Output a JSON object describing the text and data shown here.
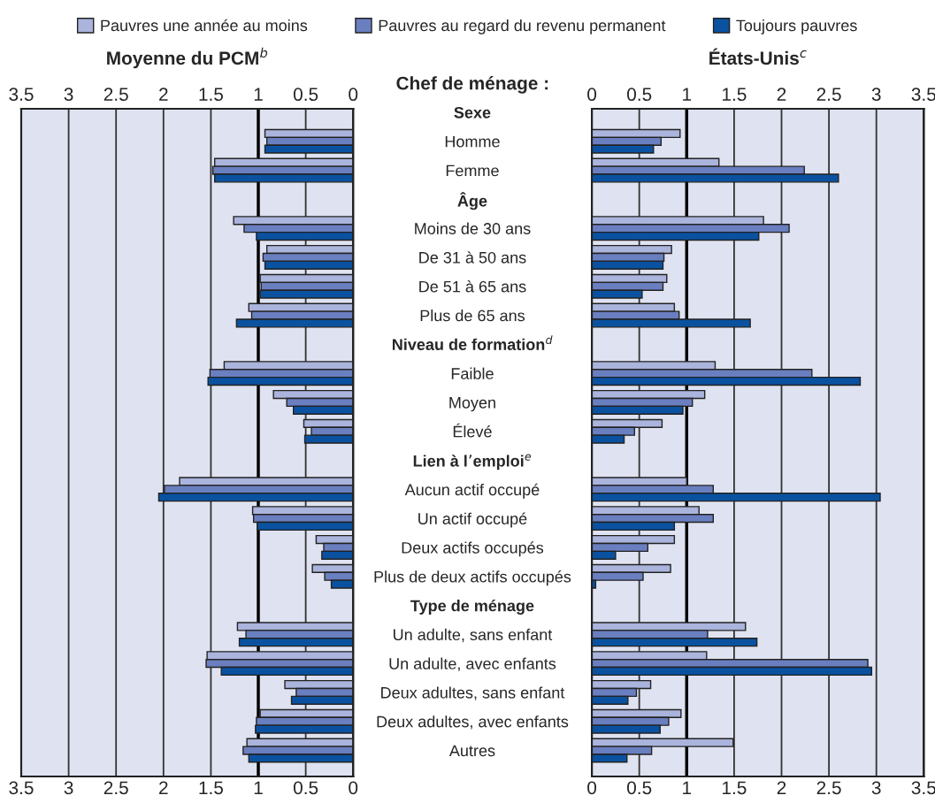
{
  "chart_data": [
    {
      "type": "bar",
      "orientation": "horizontal",
      "title": "Moyenne du PCM$^{b}$",
      "annotations": [
        "Chef de ménage :"
      ],
      "categories": [
        "Sexe",
        "Homme",
        "Femme",
        "Âge",
        "Moins de 30 ans",
        "De 31 à 50 ans",
        "De 51 à 65 ans",
        "Plus de 65 ans",
        "Niveau de formation$^{d}$",
        "Faible",
        "Moyen",
        "Élevé",
        "Lien à l’emploi$^{e}$",
        "Aucun actif occupé",
        "Un actif occupé",
        "Deux actifs occupés",
        "Plus de deux actifs occupés",
        "Type de ménage",
        "Un adulte, sans enfant",
        "Un adulte, avec enfants",
        "Deux adultes, sans enfant",
        "Deux adultes, avec enfants",
        "Autres"
      ],
      "series": [
        {
          "name": "Pauvres une année au moins",
          "color": "#aab4dc",
          "values": [
            null,
            0.93,
            1.46,
            null,
            1.26,
            0.91,
            0.98,
            1.1,
            null,
            1.36,
            0.84,
            0.52,
            null,
            1.83,
            1.06,
            0.39,
            0.43,
            null,
            1.22,
            1.54,
            0.72,
            0.98,
            1.12
          ]
        },
        {
          "name": "Pauvres au regard du revenu permanent",
          "color": "#6a7fc0",
          "values": [
            null,
            0.91,
            1.48,
            null,
            1.15,
            0.95,
            0.97,
            1.07,
            null,
            1.51,
            0.7,
            0.44,
            null,
            1.99,
            1.05,
            0.31,
            0.3,
            null,
            1.13,
            1.55,
            0.6,
            1.02,
            1.16
          ]
        },
        {
          "name": "Toujours pauvres",
          "color": "#0a52a0",
          "values": [
            null,
            0.93,
            1.46,
            null,
            1.02,
            0.93,
            0.98,
            1.23,
            null,
            1.53,
            0.63,
            0.51,
            null,
            2.05,
            1.01,
            0.33,
            0.23,
            null,
            1.2,
            1.39,
            0.65,
            1.03,
            1.1
          ]
        }
      ],
      "xlim": [
        3.5,
        0
      ],
      "xticks": [
        3.5,
        3,
        2.5,
        2,
        1.5,
        1,
        0.5,
        0
      ],
      "x2lim": [
        3.5,
        0
      ],
      "x2ticks": [
        3.5,
        3,
        2.5,
        2,
        1.5,
        1,
        0.5,
        0
      ],
      "grid": "x",
      "legend": "top",
      "ref_lines": [
        {
          "axis": "x",
          "value": 1,
          "color": "#000000"
        }
      ]
    },
    {
      "type": "bar",
      "orientation": "horizontal",
      "title": "États-Unis$^{c}$",
      "tick_labels": "x",
      "categories": [
        null,
        null,
        null,
        null,
        null,
        null,
        null,
        null,
        null,
        null,
        null,
        null,
        null,
        null,
        null,
        null,
        null,
        null,
        null,
        null,
        null,
        null,
        null
      ],
      "series": [
        {
          "color": "#aab4dc",
          "values": [
            null,
            0.93,
            1.34,
            null,
            1.81,
            0.84,
            0.79,
            0.87,
            null,
            1.3,
            1.19,
            0.74,
            null,
            1.0,
            1.13,
            0.87,
            0.83,
            null,
            1.62,
            1.21,
            0.62,
            0.94,
            1.49
          ]
        },
        {
          "color": "#6a7fc0",
          "values": [
            null,
            0.73,
            2.24,
            null,
            2.08,
            0.76,
            0.75,
            0.92,
            null,
            2.32,
            1.06,
            0.45,
            null,
            1.28,
            1.28,
            0.59,
            0.54,
            null,
            1.22,
            2.91,
            0.47,
            0.81,
            0.63
          ]
        },
        {
          "color": "#0a52a0",
          "values": [
            null,
            0.65,
            2.6,
            null,
            1.76,
            0.75,
            0.53,
            1.67,
            null,
            2.83,
            0.96,
            0.34,
            null,
            3.04,
            0.87,
            0.25,
            0.04,
            null,
            1.74,
            2.95,
            0.38,
            0.72,
            0.37
          ]
        }
      ],
      "xlim": [
        0,
        3.5
      ],
      "xticks": [
        0,
        0.5,
        1,
        {
          "value": 1.5,
          "label": "1.5"
        },
        2,
        2.5,
        3,
        3.5
      ],
      "x2lim": [
        0,
        3.5
      ],
      "x2ticks": [
        0,
        0.5,
        1,
        {
          "value": 1.5,
          "label": "1.5"
        },
        2,
        2.5,
        3,
        3.5
      ],
      "grid": "x",
      "ref_lines": [
        {
          "axis": "x",
          "value": 1,
          "color": "#000000"
        }
      ]
    }
  ]
}
